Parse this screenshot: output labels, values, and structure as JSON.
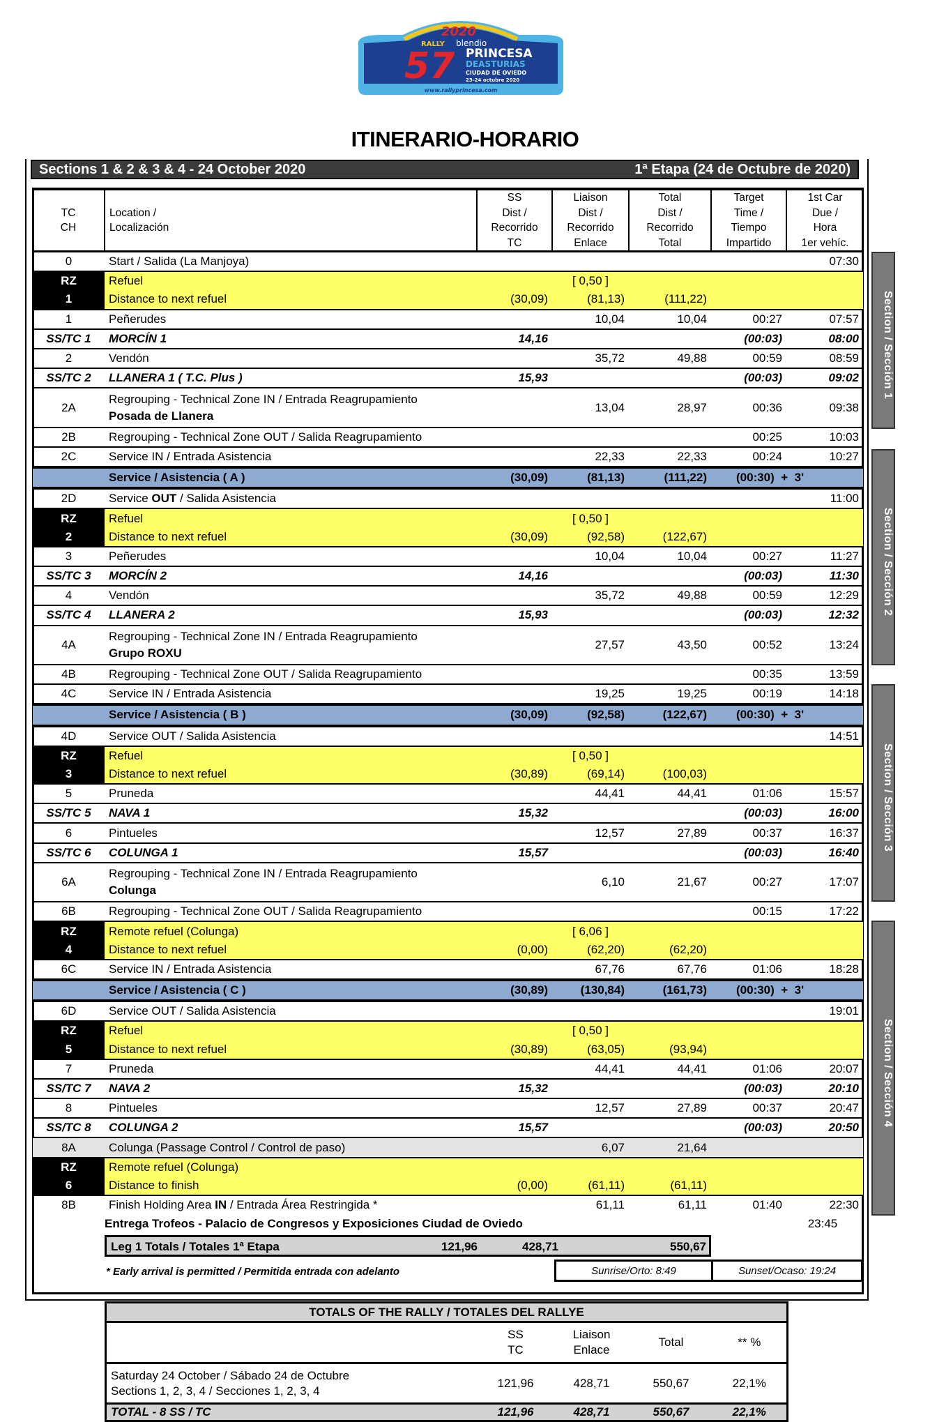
{
  "logo": {
    "year": "2020",
    "text_rally": "RALLY",
    "text_sponsor": "blendio",
    "text_number": "57",
    "text_name": "PRINCESA",
    "text_de": "DEASTURIAS",
    "text_city": "CIUDAD DE OVIEDO",
    "text_dates": "23-24 octubre 2020",
    "text_url": "www.rallyprincesa.com",
    "colors": {
      "blue": "#1c3f8f",
      "light": "#4fb3e6",
      "red": "#e3262b",
      "yellow": "#f5c518"
    }
  },
  "title": "ITINERARIO-HORARIO",
  "header_bar": {
    "left": "Sections 1 & 2 & 3 & 4 - 24 October 2020",
    "right": "1ª Etapa (24 de Octubre de 2020)"
  },
  "columns": [
    [
      "TC",
      "CH"
    ],
    [
      "Location /",
      "Localización"
    ],
    [
      "SS",
      "Dist /",
      "Recorrido",
      "TC"
    ],
    [
      "Liaison",
      "Dist /",
      "Recorrido",
      "Enlace"
    ],
    [
      "Total",
      "Dist /",
      "Recorrido",
      "Total"
    ],
    [
      "Target",
      "Time /",
      "Tiempo",
      "Impartido"
    ],
    [
      "1st Car",
      "Due /",
      "Hora",
      "1er vehíc."
    ]
  ],
  "colors": {
    "refuel": "#ffff66",
    "service": "#8eaad0",
    "regroup_gray": "#e3e3e3",
    "header_dark": "#3b3b3b",
    "section_tab": "#7a7a7a"
  },
  "rows": [
    {
      "type": "n",
      "tc": "0",
      "loc": "Start / Salida (La Manjoya)",
      "time": "07:30"
    },
    {
      "type": "rz",
      "tc": "RZ",
      "num": "1",
      "l1": "Refuel",
      "bracket": "[ 0,50 ]",
      "l2": "Distance to next refuel",
      "ss": "(30,09)",
      "li": "(81,13)",
      "tot": "(111,22)"
    },
    {
      "type": "n",
      "tc": "1",
      "loc": "Peñerudes",
      "li": "10,04",
      "tot": "10,04",
      "tgt": "00:27",
      "time": "07:57"
    },
    {
      "type": "ss",
      "tc": "SS/TC 1",
      "loc": "MORCÍN 1",
      "ss": "14,16",
      "tgt": "(00:03)",
      "time": "08:00"
    },
    {
      "type": "n",
      "tc": "2",
      "loc": "Vendón",
      "li": "35,72",
      "tot": "49,88",
      "tgt": "00:59",
      "time": "08:59"
    },
    {
      "type": "ss",
      "tc": "SS/TC 2",
      "loc": "LLANERA 1  ( T.C. Plus )",
      "ss": "15,93",
      "tgt": "(00:03)",
      "time": "09:02"
    },
    {
      "type": "rg",
      "tc": "2A",
      "loc": "Regrouping - Technical Zone IN / Entrada Reagrupamiento",
      "loc2": "Posada de Llanera",
      "li": "13,04",
      "tot": "28,97",
      "tgt": "00:36",
      "time": "09:38"
    },
    {
      "type": "n",
      "tc": "2B",
      "loc": "Regrouping - Technical Zone OUT / Salida Reagrupamiento",
      "tgt": "00:25",
      "time": "10:03"
    },
    {
      "type": "n",
      "tc": "2C",
      "loc": "Service IN / Entrada Asistencia",
      "li": "22,33",
      "tot": "22,33",
      "tgt": "00:24",
      "time": "10:27"
    },
    {
      "type": "svc",
      "loc": "Service / Asistencia ( A )",
      "ss": "(30,09)",
      "li": "(81,13)",
      "tot": "(111,22)",
      "tgt": "(00:30)  +  3'"
    },
    {
      "type": "n",
      "tc": "2D",
      "loc": [
        "Service ",
        "OUT",
        " / Salida Asistencia"
      ],
      "time": "11:00"
    },
    {
      "type": "rz",
      "tc": "RZ",
      "num": "2",
      "l1": "Refuel",
      "bracket": "[ 0,50 ]",
      "l2": "Distance to next refuel",
      "ss": "(30,09)",
      "li": "(92,58)",
      "tot": "(122,67)"
    },
    {
      "type": "n",
      "tc": "3",
      "loc": "Peñerudes",
      "li": "10,04",
      "tot": "10,04",
      "tgt": "00:27",
      "time": "11:27"
    },
    {
      "type": "ss",
      "tc": "SS/TC 3",
      "loc": "MORCÍN 2",
      "ss": "14,16",
      "tgt": "(00:03)",
      "time": "11:30"
    },
    {
      "type": "n",
      "tc": "4",
      "loc": "Vendón",
      "li": "35,72",
      "tot": "49,88",
      "tgt": "00:59",
      "time": "12:29"
    },
    {
      "type": "ss",
      "tc": "SS/TC 4",
      "loc": "LLANERA 2",
      "ss": "15,93",
      "tgt": "(00:03)",
      "time": "12:32"
    },
    {
      "type": "rg",
      "tc": "4A",
      "loc": "Regrouping - Technical Zone IN / Entrada Reagrupamiento",
      "loc2": "Grupo ROXU",
      "li": "27,57",
      "tot": "43,50",
      "tgt": "00:52",
      "time": "13:24"
    },
    {
      "type": "n",
      "tc": "4B",
      "loc": "Regrouping - Technical Zone OUT / Salida Reagrupamiento",
      "tgt": "00:35",
      "time": "13:59"
    },
    {
      "type": "n",
      "tc": "4C",
      "loc": "Service IN / Entrada Asistencia",
      "li": "19,25",
      "tot": "19,25",
      "tgt": "00:19",
      "time": "14:18"
    },
    {
      "type": "svc",
      "loc": "Service / Asistencia ( B )",
      "ss": "(30,09)",
      "li": "(92,58)",
      "tot": "(122,67)",
      "tgt": "(00:30)  +  3'"
    },
    {
      "type": "n",
      "tc": "4D",
      "loc": "Service OUT / Salida Asistencia",
      "time": "14:51"
    },
    {
      "type": "rz",
      "tc": "RZ",
      "num": "3",
      "l1": "Refuel",
      "bracket": "[ 0,50 ]",
      "l2": "Distance to next refuel",
      "ss": "(30,89)",
      "li": "(69,14)",
      "tot": "(100,03)"
    },
    {
      "type": "n",
      "tc": "5",
      "loc": "Pruneda",
      "li": "44,41",
      "tot": "44,41",
      "tgt": "01:06",
      "time": "15:57"
    },
    {
      "type": "ss",
      "tc": "SS/TC 5",
      "loc": "NAVA 1",
      "ss": "15,32",
      "tgt": "(00:03)",
      "time": "16:00"
    },
    {
      "type": "n",
      "tc": "6",
      "loc": "Pintueles",
      "li": "12,57",
      "tot": "27,89",
      "tgt": "00:37",
      "time": "16:37"
    },
    {
      "type": "ss",
      "tc": "SS/TC 6",
      "loc": "COLUNGA 1",
      "ss": "15,57",
      "tgt": "(00:03)",
      "time": "16:40"
    },
    {
      "type": "rg",
      "tc": "6A",
      "loc": "Regrouping - Technical Zone IN / Entrada Reagrupamiento",
      "loc2": "Colunga",
      "li": "6,10",
      "tot": "21,67",
      "tgt": "00:27",
      "time": "17:07"
    },
    {
      "type": "n",
      "tc": "6B",
      "loc": "Regrouping - Technical Zone OUT / Salida Reagrupamiento",
      "tgt": "00:15",
      "time": "17:22"
    },
    {
      "type": "rz",
      "tc": "RZ",
      "num": "4",
      "l1": "Remote refuel (Colunga)",
      "bracket": "[ 6,06 ]",
      "l2": "Distance to next refuel",
      "ss": "(0,00)",
      "li": "(62,20)",
      "tot": "(62,20)"
    },
    {
      "type": "n",
      "tc": "6C",
      "loc": "Service IN / Entrada Asistencia",
      "li": "67,76",
      "tot": "67,76",
      "tgt": "01:06",
      "time": "18:28"
    },
    {
      "type": "svc",
      "loc": "Service / Asistencia ( C )",
      "ss": "(30,89)",
      "li": "(130,84)",
      "tot": "(161,73)",
      "tgt": "(00:30)  +  3'"
    },
    {
      "type": "n",
      "tc": "6D",
      "loc": "Service OUT / Salida Asistencia",
      "time": "19:01"
    },
    {
      "type": "rz",
      "tc": "RZ",
      "num": "5",
      "l1": "Refuel",
      "bracket": "[ 0,50 ]",
      "l2": "Distance to next refuel",
      "ss": "(30,89)",
      "li": "(63,05)",
      "tot": "(93,94)"
    },
    {
      "type": "n",
      "tc": "7",
      "loc": "Pruneda",
      "li": "44,41",
      "tot": "44,41",
      "tgt": "01:06",
      "time": "20:07"
    },
    {
      "type": "ss",
      "tc": "SS/TC 7",
      "loc": "NAVA 2",
      "ss": "15,32",
      "tgt": "(00:03)",
      "time": "20:10"
    },
    {
      "type": "n",
      "tc": "8",
      "loc": "Pintueles",
      "li": "12,57",
      "tot": "27,89",
      "tgt": "00:37",
      "time": "20:47"
    },
    {
      "type": "ss",
      "tc": "SS/TC 8",
      "loc": "COLUNGA 2",
      "ss": "15,57",
      "tgt": "(00:03)",
      "time": "20:50"
    },
    {
      "type": "gray",
      "tc": "8A",
      "loc": "Colunga (Passage Control / Control de paso)",
      "li": "6,07",
      "tot": "21,64"
    },
    {
      "type": "rz",
      "tc": "RZ",
      "num": "6",
      "l1": "Remote refuel (Colunga)",
      "bracket": "",
      "l2": "Distance to finish",
      "ss": "(0,00)",
      "li": "(61,11)",
      "tot": "(61,11)"
    },
    {
      "type": "n",
      "tc": "8B",
      "loc": [
        "Finish Holding Area ",
        "IN",
        " / Entrada Área Restringida *"
      ],
      "li": "61,11",
      "tot": "61,11",
      "tgt": "01:40",
      "time": "22:30"
    }
  ],
  "sections": [
    "Section / Sección 1",
    "Section / Sección 2",
    "Section / Sección 3",
    "Section / Sección 4"
  ],
  "entrega": {
    "label": "Entrega Trofeos - Palacio de Congresos y Exposiciones Ciudad de Oviedo",
    "time": "23:45"
  },
  "leg_totals": {
    "label": "Leg 1 Totals / Totales 1ª Etapa",
    "ss": "121,96",
    "liaison": "428,71",
    "total": "550,67"
  },
  "footnote": "* Early arrival is permitted / Permitida entrada con adelanto",
  "sunrise": "Sunrise/Orto: 8:49",
  "sunset": "Sunset/Ocaso: 19:24",
  "rally_totals": {
    "title": "TOTALS OF THE RALLY / TOTALES DEL RALLYE",
    "headers": {
      "ss": [
        "SS",
        "TC"
      ],
      "liaison": [
        "Liaison",
        "Enlace"
      ],
      "total": "Total",
      "pct": "** %"
    },
    "day": {
      "line1": "Saturday 24 October / Sábado 24 de Octubre",
      "line2": "Sections 1, 2, 3, 4 / Secciones 1, 2, 3, 4",
      "ss": "121,96",
      "liaison": "428,71",
      "total": "550,67",
      "pct": "22,1%"
    },
    "total": {
      "label": "TOTAL - 8 SS /  TC",
      "ss": "121,96",
      "liaison": "428,71",
      "total": "550,67",
      "pct": "22,1%"
    }
  }
}
